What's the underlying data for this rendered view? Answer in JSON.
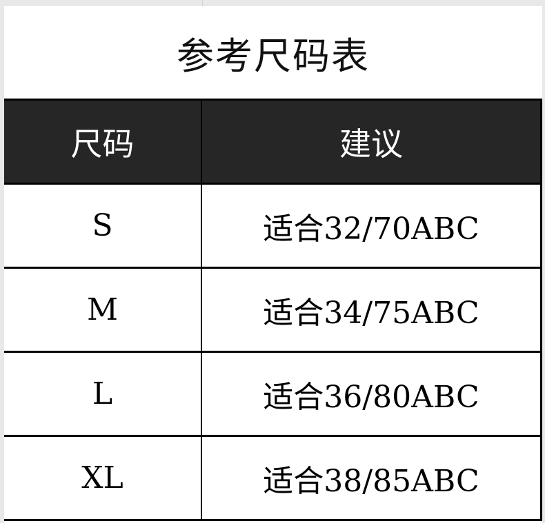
{
  "title": "参考尺码表",
  "headers": {
    "size": "尺码",
    "advice": "建议"
  },
  "rows": [
    {
      "size": "S",
      "advice": "适合32/70ABC"
    },
    {
      "size": "M",
      "advice": "适合34/75ABC"
    },
    {
      "size": "L",
      "advice": "适合36/80ABC"
    },
    {
      "size": "XL",
      "advice": "适合38/85ABC"
    }
  ],
  "colors": {
    "header_bg": "#262626",
    "header_text": "#ffffff",
    "border": "#000000"
  }
}
